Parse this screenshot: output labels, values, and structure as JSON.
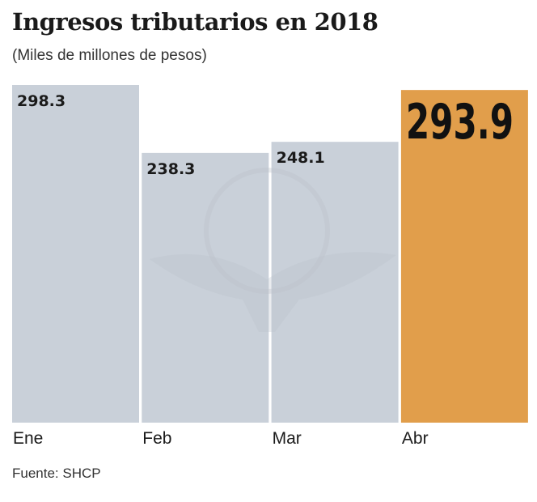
{
  "chart_data": {
    "type": "bar",
    "title": "Ingresos tributarios en 2018",
    "subtitle": "(Miles de millones de pesos)",
    "categories": [
      "Ene",
      "Feb",
      "Mar",
      "Abr"
    ],
    "values": [
      298.3,
      238.3,
      248.1,
      293.9
    ],
    "value_labels": [
      "298.3",
      "238.3",
      "248.1",
      "293.9"
    ],
    "highlight_index": 3,
    "ylim": [
      0,
      298.3
    ],
    "grid": false,
    "colors": {
      "bar": "#c9d0d9",
      "highlight": "#e19e4b"
    },
    "source": "Fuente: SHCP"
  }
}
